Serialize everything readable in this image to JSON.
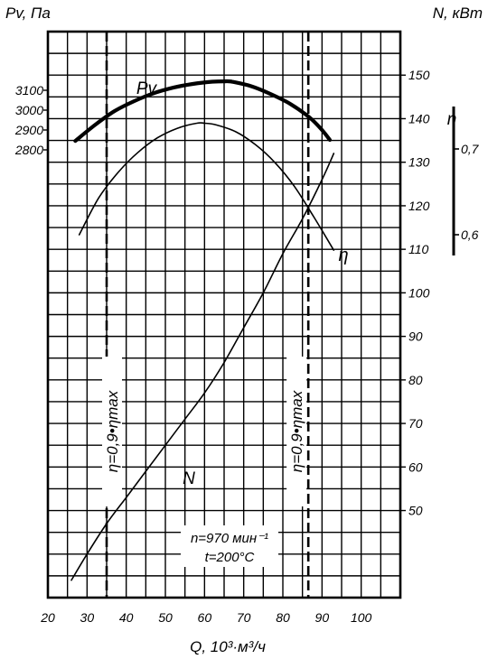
{
  "chart_data": {
    "type": "line",
    "title": "",
    "x_axis": {
      "label": "Q, 10³·м³/ч",
      "range": [
        20,
        110
      ],
      "ticks": [
        20,
        30,
        40,
        50,
        60,
        70,
        80,
        90,
        100
      ],
      "tick_labels": [
        "20",
        "30",
        "40",
        "50",
        "60",
        "70",
        "80",
        "90",
        "100"
      ]
    },
    "y_left": {
      "label": "Pv, Па",
      "ticks": [
        3100,
        3000,
        2900,
        2800
      ],
      "tick_labels": [
        "3100",
        "3000",
        "2900",
        "2800"
      ]
    },
    "y_right_power": {
      "label": "N, кВт",
      "range": [
        30,
        160
      ],
      "ticks": [
        50,
        60,
        70,
        80,
        90,
        100,
        110,
        120,
        130,
        140,
        150
      ],
      "tick_labels": [
        "50",
        "60",
        "70",
        "80",
        "90",
        "100",
        "110",
        "120",
        "130",
        "140",
        "150"
      ]
    },
    "y_right_efficiency": {
      "label": "η",
      "ticks": [
        0.7,
        0.6
      ],
      "tick_labels": [
        "0,7",
        "0,6"
      ]
    },
    "grid": true,
    "series": [
      {
        "name": "Pv",
        "axis": "pressure_Pa",
        "x": [
          27,
          32,
          37,
          42,
          47,
          52,
          57,
          62,
          65,
          67,
          72,
          77,
          82,
          87,
          90,
          92
        ],
        "y": [
          2845,
          2925,
          2995,
          3045,
          3085,
          3113,
          3132,
          3143,
          3145,
          3143,
          3120,
          3080,
          3030,
          2960,
          2900,
          2850
        ]
      },
      {
        "name": "η",
        "axis": "efficiency",
        "x": [
          28,
          33,
          38,
          43,
          48,
          53,
          58,
          60,
          63,
          68,
          73,
          78,
          83,
          88,
          93
        ],
        "y": [
          0.6,
          0.643,
          0.673,
          0.696,
          0.713,
          0.724,
          0.73,
          0.73,
          0.728,
          0.72,
          0.705,
          0.684,
          0.656,
          0.62,
          0.582
        ]
      },
      {
        "name": "N",
        "axis": "power_kW",
        "x": [
          26,
          30,
          35,
          40,
          45,
          50,
          55,
          60,
          65,
          70,
          75,
          80,
          85,
          90,
          93
        ],
        "y": [
          34,
          40,
          47,
          53,
          59,
          65,
          71,
          77,
          84,
          92,
          100,
          109,
          117,
          126,
          132
        ]
      }
    ],
    "reference_lines": [
      {
        "label": "η=0,9•ηmax",
        "x": 35,
        "style": "dashed"
      },
      {
        "label": "η=0,9•ηmax",
        "x": 86.5,
        "style": "dashed"
      }
    ],
    "annotations": {
      "speed": "n=970 мин⁻¹",
      "temperature": "t=200°C"
    }
  }
}
